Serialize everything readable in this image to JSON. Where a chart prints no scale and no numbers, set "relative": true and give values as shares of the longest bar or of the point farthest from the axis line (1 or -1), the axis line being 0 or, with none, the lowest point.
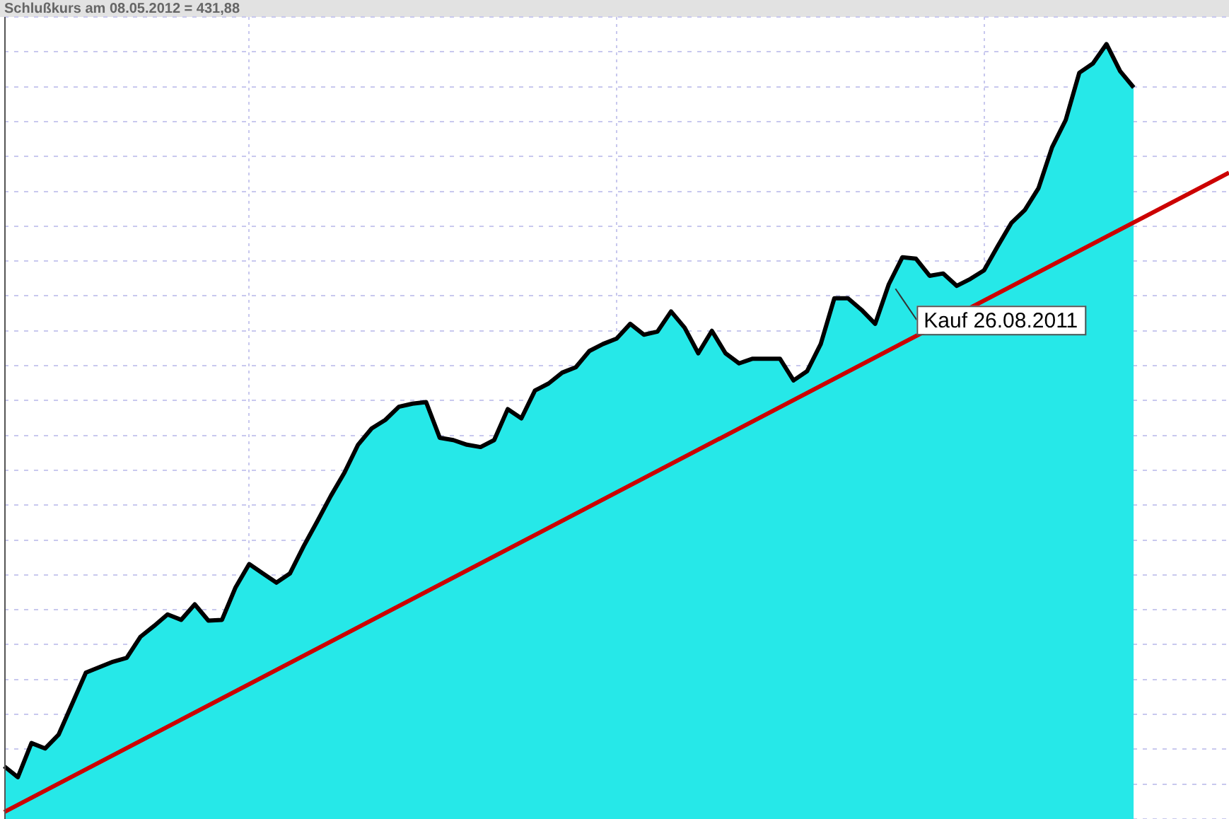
{
  "chart_data": {
    "type": "area",
    "title": "Schlußkurs am 08.05.2012 = 431,88",
    "relative": true,
    "grid": true,
    "legend": false,
    "annotations": [
      "Kauf 26.08.2011"
    ],
    "categories": [
      null,
      null,
      null,
      null,
      null,
      null,
      null,
      null,
      null,
      null,
      null,
      null,
      null,
      null,
      null,
      null,
      null,
      null,
      null,
      null,
      null,
      null,
      null,
      null,
      null,
      null,
      null,
      null,
      null,
      null,
      null,
      null,
      null,
      null,
      null,
      null,
      null,
      null,
      null,
      null,
      null,
      null,
      null,
      null,
      null,
      null,
      null,
      null,
      null,
      null,
      null,
      null,
      null,
      null,
      null,
      null,
      null,
      null,
      null,
      null,
      null,
      null,
      null,
      null,
      null,
      null,
      null,
      null,
      null,
      null,
      null,
      null,
      null,
      null,
      null,
      null,
      null,
      null,
      null,
      null,
      null,
      null,
      null,
      null,
      null,
      null,
      null,
      null,
      null,
      null,
      null
    ],
    "series": [
      {
        "color": "#26e8e8",
        "values": [
          0.068,
          0.054,
          0.098,
          0.091,
          0.109,
          0.149,
          0.189,
          0.196,
          0.203,
          0.208,
          0.235,
          0.249,
          0.264,
          0.257,
          0.277,
          0.256,
          0.257,
          0.299,
          0.329,
          0.317,
          0.305,
          0.317,
          0.352,
          0.384,
          0.417,
          0.447,
          0.483,
          0.504,
          0.515,
          0.532,
          0.536,
          0.538,
          0.492,
          0.489,
          0.483,
          0.48,
          0.489,
          0.529,
          0.517,
          0.553,
          0.562,
          0.576,
          0.583,
          0.604,
          0.613,
          0.62,
          0.639,
          0.625,
          0.629,
          0.655,
          0.634,
          0.601,
          0.63,
          0.601,
          0.588,
          0.594,
          0.594,
          0.594,
          0.566,
          0.578,
          0.613,
          0.672,
          0.672,
          0.657,
          0.639,
          0.69,
          0.725,
          0.723,
          0.701,
          0.704,
          0.688,
          0.697,
          0.708,
          0.739,
          0.769,
          0.786,
          0.814,
          0.867,
          0.902,
          0.963,
          0.975,
          1,
          0.965,
          0.944,
          null,
          null,
          null,
          null,
          null,
          null,
          null
        ]
      },
      {
        "type": "line",
        "color": "#cc0000",
        "values": [
          0.009,
          null,
          null,
          null,
          null,
          null,
          null,
          null,
          null,
          null,
          null,
          null,
          null,
          null,
          null,
          null,
          null,
          null,
          null,
          null,
          null,
          null,
          null,
          null,
          null,
          null,
          null,
          null,
          null,
          null,
          null,
          null,
          null,
          null,
          null,
          null,
          null,
          null,
          null,
          null,
          null,
          null,
          null,
          null,
          null,
          null,
          null,
          null,
          null,
          null,
          null,
          null,
          null,
          null,
          null,
          null,
          null,
          null,
          null,
          null,
          null,
          null,
          null,
          null,
          null,
          null,
          null,
          null,
          null,
          null,
          null,
          null,
          null,
          null,
          null,
          null,
          null,
          null,
          null,
          null,
          null,
          null,
          null,
          null,
          null,
          null,
          null,
          null,
          null,
          null,
          0.834
        ]
      }
    ]
  }
}
